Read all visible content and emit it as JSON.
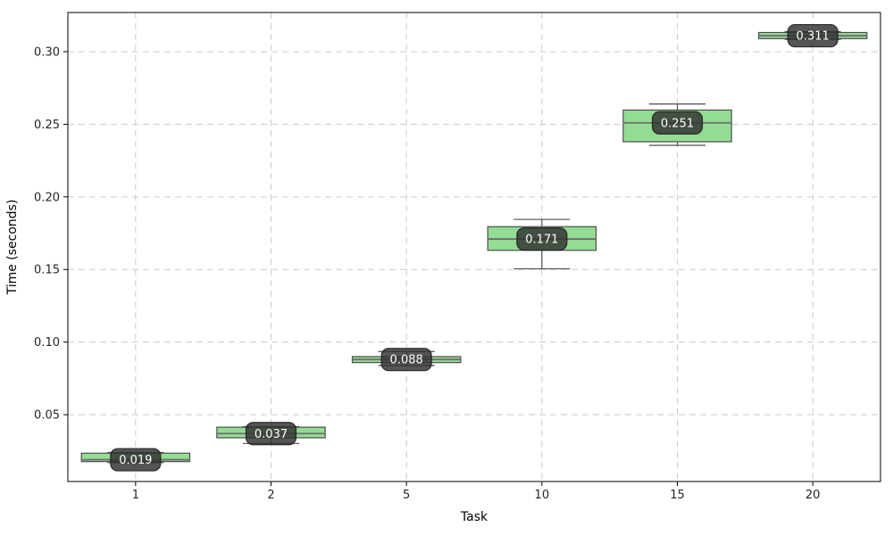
{
  "chart_data": {
    "type": "boxplot",
    "title": "",
    "xlabel": "Task",
    "ylabel": "Time (seconds)",
    "categories": [
      "1",
      "2",
      "5",
      "10",
      "15",
      "20"
    ],
    "yticks": [
      0.05,
      0.1,
      0.15,
      0.2,
      0.25,
      0.3
    ],
    "ylim": [
      0.004,
      0.327
    ],
    "xlim_slots": [
      0.5,
      6.5
    ],
    "grid": {
      "visible": true,
      "style": "dashed",
      "axes": "both"
    },
    "legend": null,
    "boxes": [
      {
        "category": "1",
        "annotation": "0.019",
        "median": 0.019,
        "q1": 0.0177,
        "q3": 0.0235,
        "whisker_low": 0.017,
        "whisker_high": 0.024
      },
      {
        "category": "2",
        "annotation": "0.037",
        "median": 0.037,
        "q1": 0.0341,
        "q3": 0.0414,
        "whisker_low": 0.0302,
        "whisker_high": 0.0418
      },
      {
        "category": "5",
        "annotation": "0.088",
        "median": 0.088,
        "q1": 0.0859,
        "q3": 0.09,
        "whisker_low": 0.0839,
        "whisker_high": 0.0935
      },
      {
        "category": "10",
        "annotation": "0.171",
        "median": 0.171,
        "q1": 0.1632,
        "q3": 0.1795,
        "whisker_low": 0.1505,
        "whisker_high": 0.1845
      },
      {
        "category": "15",
        "annotation": "0.251",
        "median": 0.251,
        "q1": 0.238,
        "q3": 0.2598,
        "whisker_low": 0.2355,
        "whisker_high": 0.264
      },
      {
        "category": "20",
        "annotation": "0.311",
        "median": 0.311,
        "q1": 0.309,
        "q3": 0.3132,
        "whisker_low": 0.3085,
        "whisker_high": 0.3138
      }
    ],
    "colors": {
      "box_fill": "#94DC94",
      "box_edge": "#4d4d4d",
      "median": "#6e6e6e",
      "whisker": "#4d4d4d",
      "grid": "#cccccc",
      "spine": "#000000",
      "tick_label": "#262626",
      "axis_label": "#000000",
      "annotation_bg": "#2f2f2f",
      "annotation_border": "#1a1a1a",
      "annotation_text": "#ffffff",
      "background": "#ffffff"
    }
  }
}
